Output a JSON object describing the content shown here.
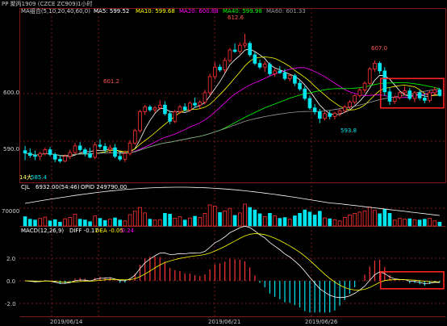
{
  "header": {
    "title": "PP 聚丙1909 (CZCE ZC909)",
    "period": "1小时"
  },
  "ma_legend": [
    {
      "label": "MA组合(5,10,20,40,60,0)",
      "color": "#d0d0d0"
    },
    {
      "label": "MA5: 599.52",
      "color": "#ffffff"
    },
    {
      "label": "MA10: 599.68",
      "color": "#ffff00"
    },
    {
      "label": "MA20: 600.88",
      "color": "#ff00ff"
    },
    {
      "label": "MA40: 599.98",
      "color": "#00ff00"
    },
    {
      "label": "MA60: 601.33",
      "color": "#9a9a9a"
    }
  ],
  "volume_legend": {
    "label": "CJL",
    "volume": "6932.00(54:46)",
    "opid": "OPID 249790.00",
    "tick_70000": "70000"
  },
  "macd_legend": {
    "label": "MACD(12,26,9)",
    "diff": "DIFF -0.17",
    "dea": "DEA -0.05",
    "macd": "-0.24"
  },
  "price_axis": [
    "600.0",
    "590.0"
  ],
  "macd_axis": [
    "2.0",
    "0.0",
    "-2.0"
  ],
  "date_labels": [
    "2019/06/14",
    "2019/06/21",
    "2019/06/26"
  ],
  "annotations": {
    "low_1": "14大",
    "low_2": "585.4",
    "peak_1": "601.2",
    "peak_2": "612.6",
    "peak_3": "607.0",
    "trough": "593.8"
  },
  "colors": {
    "up": "#ff3333",
    "down": "#00e5ee",
    "highlight": "#ff2222",
    "grid": "#7a1a1a"
  },
  "chart_data": {
    "type": "candlestick",
    "price_ylim": [
      582,
      616
    ],
    "candles": [
      [
        588,
        589,
        586,
        587.5
      ],
      [
        587.5,
        588.5,
        586.5,
        587
      ],
      [
        587,
        588,
        586,
        586.8
      ],
      [
        586.8,
        587.8,
        586,
        587.4
      ],
      [
        587.4,
        588.6,
        587,
        588.2
      ],
      [
        588.2,
        588.8,
        586.8,
        587.2
      ],
      [
        587.2,
        587.6,
        585.6,
        586.2
      ],
      [
        586.2,
        587,
        585.4,
        585.8
      ],
      [
        585.8,
        587.2,
        585.6,
        586.8
      ],
      [
        586.8,
        588.2,
        586.2,
        587.6
      ],
      [
        587.6,
        589.6,
        587.2,
        589
      ],
      [
        589,
        589.8,
        587.8,
        588.2
      ],
      [
        588.2,
        588.6,
        586.8,
        587.4
      ],
      [
        587.4,
        588.6,
        586.4,
        586.6
      ],
      [
        586.6,
        589.8,
        586.2,
        589.2
      ],
      [
        589.2,
        590.4,
        588.4,
        588.9
      ],
      [
        588.9,
        589.6,
        587.6,
        588.2
      ],
      [
        588.2,
        589.2,
        587.4,
        588.6
      ],
      [
        588.6,
        589.4,
        586.4,
        586.8
      ],
      [
        586.8,
        587.6,
        585.8,
        586.2
      ],
      [
        586.2,
        588,
        585.6,
        587.4
      ],
      [
        587.4,
        590.2,
        587,
        589.6
      ],
      [
        589.6,
        592.6,
        589.2,
        592.2
      ],
      [
        592.2,
        596.6,
        591.8,
        596.2
      ],
      [
        596.2,
        597.6,
        595.6,
        597.2
      ],
      [
        597.2,
        597.6,
        596.2,
        596.6
      ],
      [
        596.6,
        597.4,
        596,
        597
      ],
      [
        597,
        598.6,
        596.6,
        597.6
      ],
      [
        597.6,
        598.4,
        595.4,
        595.8
      ],
      [
        595.8,
        596.4,
        593.6,
        594.2
      ],
      [
        594.2,
        596.6,
        593.8,
        596.2
      ],
      [
        596.2,
        597.6,
        595.8,
        597.2
      ],
      [
        597.2,
        598,
        596.2,
        596.6
      ],
      [
        596.6,
        598.4,
        596.2,
        598
      ],
      [
        598,
        599.2,
        597,
        597.6
      ],
      [
        597.6,
        598.6,
        596.8,
        598.2
      ],
      [
        598.2,
        600.8,
        597.8,
        600.2
      ],
      [
        600.2,
        604.2,
        599.6,
        603.6
      ],
      [
        603.6,
        606.6,
        603,
        605.6
      ],
      [
        605.6,
        606.2,
        604.6,
        605
      ],
      [
        605,
        607.6,
        604.4,
        607
      ],
      [
        607,
        609.6,
        606.6,
        609.2
      ],
      [
        609.2,
        610.6,
        608.6,
        608.9
      ],
      [
        608.9,
        610.8,
        608.4,
        610.2
      ],
      [
        610.2,
        612.6,
        609.6,
        610.6
      ],
      [
        610.6,
        611,
        607.8,
        608.2
      ],
      [
        608.2,
        608.8,
        606,
        606.4
      ],
      [
        606.4,
        607.2,
        605.2,
        605.6
      ],
      [
        605.6,
        606.8,
        604.6,
        606.2
      ],
      [
        606.2,
        606.6,
        603.8,
        604.2
      ],
      [
        604.2,
        605.4,
        603.6,
        604.8
      ],
      [
        604.8,
        605.8,
        604.2,
        604.4
      ],
      [
        604.4,
        605.2,
        602.8,
        603.2
      ],
      [
        603.2,
        604.2,
        602.6,
        603.8
      ],
      [
        603.8,
        604.2,
        601.6,
        602.2
      ],
      [
        602.2,
        602.8,
        600.6,
        601
      ],
      [
        601,
        601.6,
        598.6,
        599
      ],
      [
        599,
        599.6,
        596.6,
        597
      ],
      [
        597,
        597.8,
        595.6,
        596.2
      ],
      [
        596.2,
        596.8,
        593.8,
        594.8
      ],
      [
        594.8,
        596.2,
        594.4,
        595.8
      ],
      [
        595.8,
        596.4,
        594.6,
        595.2
      ],
      [
        595.2,
        596.2,
        594.6,
        595.9
      ],
      [
        595.9,
        596.8,
        595.2,
        596.4
      ],
      [
        596.4,
        597.6,
        596,
        597.2
      ],
      [
        597.2,
        598.6,
        596.8,
        598.2
      ],
      [
        598.2,
        599.8,
        597.8,
        599.6
      ],
      [
        599.6,
        601.2,
        599.2,
        600.8
      ],
      [
        600.8,
        602.6,
        600.2,
        602.2
      ],
      [
        602.2,
        605.6,
        601.8,
        605.2
      ],
      [
        605.2,
        607,
        604.6,
        606.4
      ],
      [
        606.4,
        606.8,
        604.2,
        604.8
      ],
      [
        604.8,
        605.6,
        599.6,
        600.4
      ],
      [
        600.4,
        601.2,
        597.6,
        598.4
      ],
      [
        598.4,
        599.6,
        597.8,
        599.2
      ],
      [
        599.2,
        600.6,
        598.8,
        600.2
      ],
      [
        600.2,
        601.6,
        599.6,
        600.6
      ],
      [
        600.6,
        601.2,
        598.6,
        599
      ],
      [
        599,
        600.6,
        598.2,
        600.2
      ],
      [
        600.2,
        600.8,
        598.6,
        599.1
      ],
      [
        599.1,
        600,
        598,
        598.6
      ],
      [
        598.6,
        600.6,
        598.2,
        600.2
      ],
      [
        600.2,
        601.4,
        599.6,
        600.8
      ],
      [
        600.8,
        601.2,
        599.4,
        599.6
      ]
    ],
    "volume_ylim": [
      0,
      100000
    ],
    "volume": [
      22000,
      16000,
      14000,
      18000,
      21000,
      12000,
      15000,
      9000,
      17000,
      20000,
      28000,
      16000,
      14000,
      10000,
      24000,
      18000,
      13000,
      16000,
      19000,
      14000,
      12000,
      27000,
      35000,
      44000,
      31000,
      16000,
      14000,
      15000,
      30000,
      28000,
      18000,
      22000,
      14000,
      19000,
      23000,
      20000,
      30000,
      50000,
      47000,
      32000,
      36000,
      42000,
      25000,
      31000,
      52000,
      44000,
      38000,
      29000,
      22000,
      30000,
      24000,
      18000,
      20000,
      16000,
      24000,
      30000,
      38000,
      33000,
      26000,
      35000,
      19000,
      17000,
      15000,
      12000,
      20000,
      26000,
      30000,
      33000,
      36000,
      45000,
      37000,
      29000,
      40000,
      30000,
      14000,
      18000,
      16000,
      17000,
      15000,
      14000,
      16000,
      18000,
      12000,
      9000
    ],
    "macd_ylim": [
      -2.8,
      3.2
    ]
  },
  "highlight_boxes": [
    {
      "name": "price-highlight",
      "from_index": 72,
      "to_index": 83,
      "price_range": [
        597.0,
        603.2
      ]
    },
    {
      "name": "macd-highlight",
      "from_index": 72,
      "to_index": 83,
      "macd_range": [
        -0.7,
        0.8
      ]
    }
  ]
}
